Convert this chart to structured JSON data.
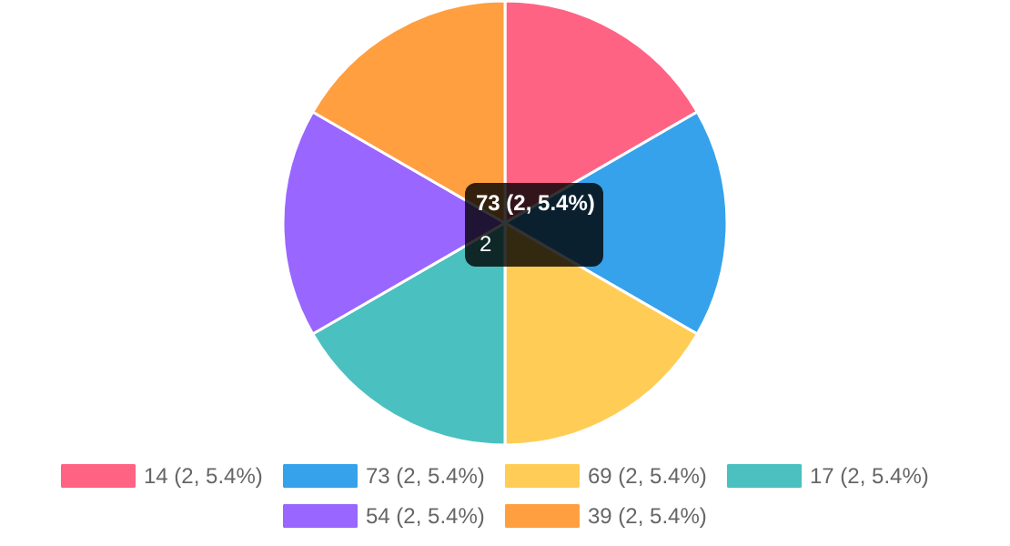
{
  "chart_data": {
    "type": "pie",
    "categories": [
      "14 (2, 5.4%)",
      "73 (2, 5.4%)",
      "69 (2, 5.4%)",
      "17 (2, 5.4%)",
      "54 (2, 5.4%)",
      "39 (2, 5.4%)"
    ],
    "values": [
      2,
      2,
      2,
      2,
      2,
      2
    ],
    "colors": [
      "#ff6384",
      "#36a2eb",
      "#ffcd56",
      "#4bc0c0",
      "#9966ff",
      "#ff9f40"
    ],
    "legend": "bottom",
    "annotations": [
      "73 (2, 5.4%)",
      "2"
    ]
  }
}
